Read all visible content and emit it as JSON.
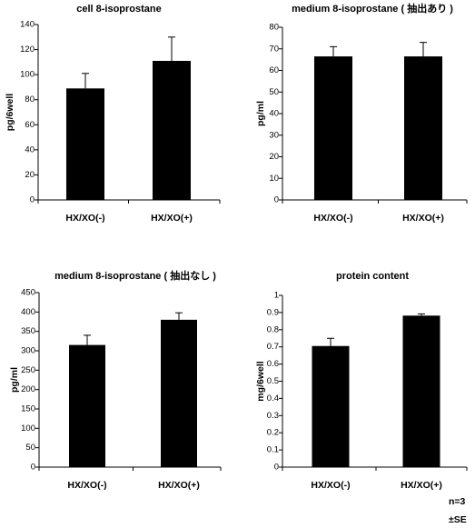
{
  "chart_data": [
    {
      "type": "bar",
      "title": "cell 8-isoprostane",
      "ylabel": "pg/6well",
      "categories": [
        "HX/XO(-)",
        "HX/XO(+)"
      ],
      "values": [
        89,
        111
      ],
      "errors": [
        12,
        19
      ],
      "ylim": [
        0,
        140
      ],
      "yticks": [
        0,
        20,
        40,
        60,
        80,
        100,
        120,
        140
      ],
      "ytick_labels": [
        "0",
        "20",
        "40",
        "60",
        "80",
        "100",
        "120",
        "140"
      ],
      "color": "#000000"
    },
    {
      "type": "bar",
      "title": "medium 8-isoprostane ( 抽出あり )",
      "ylabel": "pg/ml",
      "categories": [
        "HX/XO(-)",
        "HX/XO(+)"
      ],
      "values": [
        66.5,
        66.5
      ],
      "errors": [
        4.5,
        6.5
      ],
      "ylim": [
        0,
        80
      ],
      "yticks": [
        0,
        10,
        20,
        30,
        40,
        50,
        60,
        70,
        80
      ],
      "ytick_labels": [
        "0",
        "10",
        "20",
        "30",
        "40",
        "50",
        "60",
        "70",
        "80"
      ],
      "color": "#000000"
    },
    {
      "type": "bar",
      "title": "medium 8-isoprostane ( 抽出なし )",
      "ylabel": "pg/ml",
      "categories": [
        "HX/XO(-)",
        "HX/XO(+)"
      ],
      "values": [
        315,
        380
      ],
      "errors": [
        25,
        18
      ],
      "ylim": [
        0,
        450
      ],
      "yticks": [
        0,
        50,
        100,
        150,
        200,
        250,
        300,
        350,
        400,
        450
      ],
      "ytick_labels": [
        "0",
        "50",
        "100",
        "150",
        "200",
        "250",
        "300",
        "350",
        "400",
        "450"
      ],
      "color": "#000000"
    },
    {
      "type": "bar",
      "title": "protein content",
      "ylabel": "mg/6well",
      "categories": [
        "HX/XO(-)",
        "HX/XO(+)"
      ],
      "values": [
        0.705,
        0.882
      ],
      "errors": [
        0.045,
        0.01
      ],
      "ylim": [
        0,
        1
      ],
      "yticks": [
        0,
        0.1,
        0.2,
        0.3,
        0.4,
        0.5,
        0.6,
        0.7,
        0.8,
        0.9,
        1
      ],
      "ytick_labels": [
        "0",
        "0.1",
        "0.2",
        "0.3",
        "0.4",
        "0.5",
        "0.6",
        "0.7",
        "0.8",
        "0.9",
        "1"
      ],
      "color": "#000000"
    }
  ],
  "notes": {
    "n": "n=3",
    "se": "±SE"
  }
}
